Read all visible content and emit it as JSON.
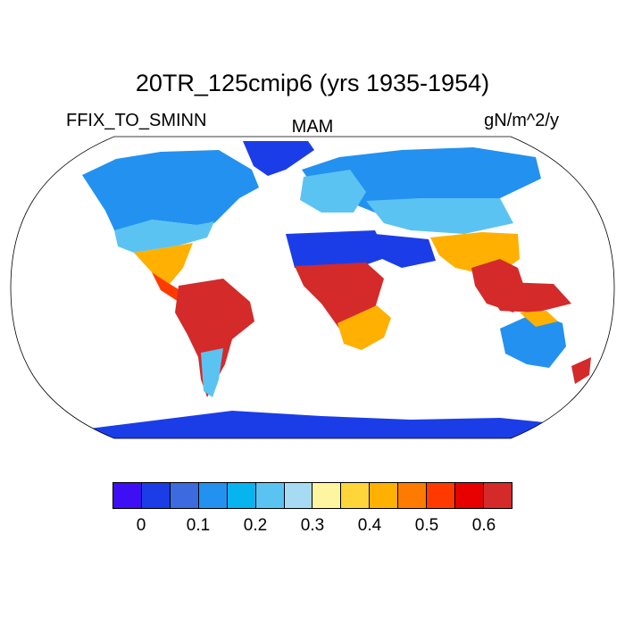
{
  "title": "20TR_125cmip6 (yrs 1935-1954)",
  "subtitle_left": "FFIX_TO_SMINN",
  "subtitle_center": "MAM",
  "subtitle_right": "gN/m^2/y",
  "colorbar": {
    "colors": [
      "#3e0ff2",
      "#1b3de8",
      "#3c6be0",
      "#2391f0",
      "#07b4f0",
      "#5bc3f2",
      "#a7dbf3",
      "#fef5a0",
      "#ffd63a",
      "#ffb000",
      "#ff7a00",
      "#ff3a00",
      "#e60000",
      "#d42a2a"
    ],
    "tick_labels": [
      "0",
      "0.1",
      "0.2",
      "0.3",
      "0.4",
      "0.5",
      "0.6"
    ]
  },
  "colors": {
    "ocean": "#ffffff",
    "cold": "#1b3de8",
    "cool": "#2391f0",
    "mid": "#5bc3f2",
    "warm": "#ffb000",
    "hot": "#d42a2a"
  }
}
